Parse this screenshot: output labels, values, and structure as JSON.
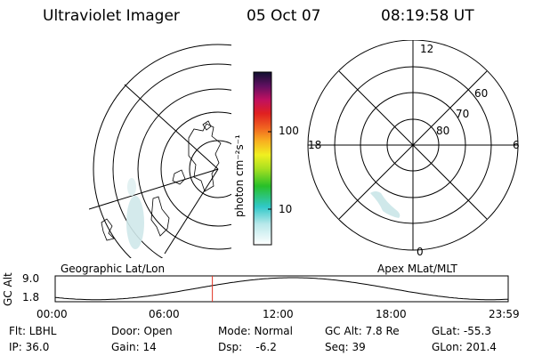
{
  "header": {
    "instrument": "Ultraviolet Imager",
    "date": "05 Oct 07",
    "time": "08:19:58 UT"
  },
  "colorbar": {
    "unit_label": "photon cm⁻²s⁻¹",
    "tick_100": "100",
    "tick_10": "10"
  },
  "polar_plot": {
    "lat_labels": [
      "80",
      "70",
      "60"
    ],
    "mlt_labels": {
      "top": "12",
      "left": "18",
      "right": "6",
      "bottom": "0"
    }
  },
  "altitude_plot": {
    "ylabel": "GC Alt",
    "y_ticks": [
      "9.0",
      "1.8"
    ],
    "left_title": "Geographic Lat/Lon",
    "right_title": "Apex MLat/MLT",
    "x_ticks": [
      "00:00",
      "06:00",
      "12:00",
      "18:00",
      "23:59"
    ],
    "current_time_fraction": 0.347
  },
  "info": {
    "row1": [
      "Flt: LBHL",
      "Door: Open",
      "Mode: Normal",
      "GC Alt: 7.8 Re",
      "GLat: -55.3"
    ],
    "row2": [
      "IP: 36.0",
      "Gain: 14",
      "Dsp:    -6.2",
      "Seq: 39",
      "GLon: 201.4"
    ]
  },
  "colors": {
    "marker": "#e03020",
    "aurora": "#cfe8ea"
  }
}
